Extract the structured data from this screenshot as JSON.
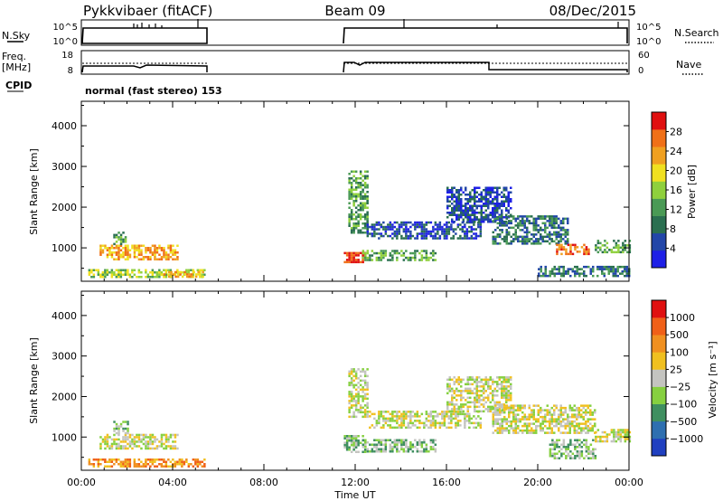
{
  "header": {
    "station": "Pykkvibaer (fitACF)",
    "beam": "Beam 09",
    "date": "08/Dec/2015"
  },
  "strip_labels": {
    "nsky": "N.Sky",
    "nsearch": "N.Search",
    "freq_line1": "Freq.",
    "freq_line2": "[MHz]",
    "nave": "Nave",
    "cpid": "CPID",
    "cpid_value": "normal (fast stereo) 153"
  },
  "strip_ticks": {
    "noise_left": [
      "10^5",
      "10^0"
    ],
    "noise_right": [
      "10^5",
      "10^0"
    ],
    "freq_left": [
      "18",
      "8"
    ],
    "nave_right": [
      "60",
      "0"
    ]
  },
  "colors": {
    "power": [
      "#1e20e6",
      "#2246a8",
      "#2a6f50",
      "#4a9a55",
      "#8fd03c",
      "#f0e020",
      "#f0a020",
      "#f07018",
      "#e01010"
    ],
    "velocity": [
      "#2040c0",
      "#2e6fb0",
      "#3f8f60",
      "#86d040",
      "#c4c4c0",
      "#f0c020",
      "#f09020",
      "#f06018",
      "#e01010"
    ]
  },
  "chart_data": [
    {
      "type": "heatmap",
      "panel": "power",
      "xlabel": "",
      "ylabel": "Slant Range [km]",
      "yticks": [
        "1000",
        "2000",
        "3000",
        "4000"
      ],
      "ylim": [
        180,
        4600
      ],
      "xlim_hours": [
        0,
        24
      ],
      "colorbar": {
        "label": "Power [dB]",
        "ticks": [
          "4",
          "8",
          "12",
          "16",
          "20",
          "24",
          "28"
        ],
        "range": [
          0,
          32
        ]
      },
      "echo_bands": [
        {
          "t0": 0.3,
          "t1": 5.4,
          "r0": 300,
          "r1": 480,
          "level": 4
        },
        {
          "t0": 0.8,
          "t1": 4.2,
          "r0": 720,
          "r1": 1080,
          "level": 6
        },
        {
          "t0": 1.4,
          "t1": 1.9,
          "r0": 1080,
          "r1": 1400,
          "level": 3
        },
        {
          "t0": 3.5,
          "t1": 5.3,
          "r0": 280,
          "r1": 430,
          "level": 6
        },
        {
          "t0": 11.5,
          "t1": 12.4,
          "r0": 650,
          "r1": 900,
          "level": 8
        },
        {
          "t0": 11.7,
          "t1": 12.5,
          "r0": 1400,
          "r1": 2900,
          "level": 3
        },
        {
          "t0": 12.3,
          "t1": 15.5,
          "r0": 700,
          "r1": 950,
          "level": 3
        },
        {
          "t0": 12.5,
          "t1": 17.5,
          "r0": 1250,
          "r1": 1650,
          "level": 1
        },
        {
          "t0": 16.0,
          "t1": 18.8,
          "r0": 1650,
          "r1": 2500,
          "level": 1
        },
        {
          "t0": 18.0,
          "t1": 21.3,
          "r0": 1100,
          "r1": 1800,
          "level": 2
        },
        {
          "t0": 20.8,
          "t1": 22.2,
          "r0": 850,
          "r1": 1100,
          "level": 7
        },
        {
          "t0": 20.0,
          "t1": 24.0,
          "r0": 300,
          "r1": 560,
          "level": 2
        },
        {
          "t0": 22.5,
          "t1": 24.0,
          "r0": 900,
          "r1": 1200,
          "level": 3
        }
      ]
    },
    {
      "type": "heatmap",
      "panel": "velocity",
      "xlabel": "Time UT",
      "ylabel": "Slant Range [km]",
      "xticks": [
        "00:00",
        "04:00",
        "08:00",
        "12:00",
        "16:00",
        "20:00",
        "00:00"
      ],
      "yticks": [
        "1000",
        "2000",
        "3000",
        "4000"
      ],
      "ylim": [
        180,
        4600
      ],
      "xlim_hours": [
        0,
        24
      ],
      "colorbar": {
        "label": "Velocity [m s⁻¹]",
        "ticks": [
          "1000",
          "500",
          "100",
          "25",
          "−25",
          "−100",
          "−500",
          "−1000"
        ]
      },
      "echo_bands": [
        {
          "t0": 0.3,
          "t1": 5.4,
          "r0": 280,
          "r1": 470,
          "level": 6
        },
        {
          "t0": 0.8,
          "t1": 4.2,
          "r0": 720,
          "r1": 1080,
          "level": 4
        },
        {
          "t0": 1.4,
          "t1": 2.0,
          "r0": 1080,
          "r1": 1400,
          "level": 3
        },
        {
          "t0": 11.5,
          "t1": 12.4,
          "r0": 650,
          "r1": 1050,
          "level": 3
        },
        {
          "t0": 11.7,
          "t1": 12.5,
          "r0": 1500,
          "r1": 2700,
          "level": 4
        },
        {
          "t0": 12.3,
          "t1": 15.5,
          "r0": 650,
          "r1": 950,
          "level": 3
        },
        {
          "t0": 12.5,
          "t1": 17.5,
          "r0": 1250,
          "r1": 1650,
          "level": 4
        },
        {
          "t0": 16.0,
          "t1": 18.8,
          "r0": 1650,
          "r1": 2500,
          "level": 4
        },
        {
          "t0": 18.0,
          "t1": 22.5,
          "r0": 1100,
          "r1": 1800,
          "level": 4
        },
        {
          "t0": 20.5,
          "t1": 22.5,
          "r0": 500,
          "r1": 950,
          "level": 3
        },
        {
          "t0": 22.5,
          "t1": 24.0,
          "r0": 900,
          "r1": 1200,
          "level": 4
        }
      ]
    }
  ]
}
